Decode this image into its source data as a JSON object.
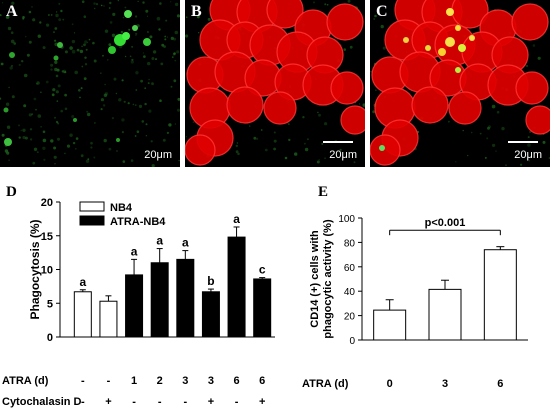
{
  "panels": {
    "A": {
      "label": "A",
      "scale": "20μm"
    },
    "B": {
      "label": "B",
      "scale": "20μm"
    },
    "C": {
      "label": "C",
      "scale": "20μm"
    }
  },
  "chart_labels": {
    "D": "D",
    "E": "E"
  },
  "chart_data": [
    {
      "type": "bar",
      "ylabel": "Phagocytosis (%)",
      "ylim": [
        0,
        20
      ],
      "yticks": [
        0,
        5,
        10,
        15,
        20
      ],
      "legend": [
        {
          "name": "NB4",
          "color": "#ffffff"
        },
        {
          "name": "ATRA-NB4",
          "color": "#000000"
        }
      ],
      "legend_position": "top-left",
      "row_labels": [
        "ATRA (d)",
        "Cytochalasin D"
      ],
      "bars": [
        {
          "atra": "-",
          "cyto": "-",
          "value": 6.7,
          "err": 0.3,
          "group": "NB4",
          "letter": "a"
        },
        {
          "atra": "-",
          "cyto": "+",
          "value": 5.3,
          "err": 0.8,
          "group": "NB4",
          "letter": ""
        },
        {
          "atra": "1",
          "cyto": "-",
          "value": 9.2,
          "err": 2.3,
          "group": "ATRA-NB4",
          "letter": "a"
        },
        {
          "atra": "2",
          "cyto": "-",
          "value": 11.0,
          "err": 2.1,
          "group": "ATRA-NB4",
          "letter": "a"
        },
        {
          "atra": "3",
          "cyto": "-",
          "value": 11.5,
          "err": 1.3,
          "group": "ATRA-NB4",
          "letter": "a"
        },
        {
          "atra": "3",
          "cyto": "+",
          "value": 6.7,
          "err": 0.4,
          "group": "ATRA-NB4",
          "letter": "b"
        },
        {
          "atra": "6",
          "cyto": "-",
          "value": 14.8,
          "err": 1.5,
          "group": "ATRA-NB4",
          "letter": "a"
        },
        {
          "atra": "6",
          "cyto": "+",
          "value": 8.6,
          "err": 0.2,
          "group": "ATRA-NB4",
          "letter": "c"
        }
      ]
    },
    {
      "type": "bar",
      "ylabel": "CD14 (+) cells with phagocytic activity (%)",
      "ylabel_lines": [
        "CD14 (+) cells with",
        "phagocytic activity (%)"
      ],
      "ylim": [
        0,
        100
      ],
      "yticks": [
        0,
        20,
        40,
        60,
        80,
        100
      ],
      "xlabel": "ATRA (d)",
      "categories": [
        "0",
        "3",
        "6"
      ],
      "values": [
        24.5,
        41.5,
        74
      ],
      "errors": [
        8.5,
        7.5,
        2.5
      ],
      "annotation": "p<0.001"
    }
  ]
}
